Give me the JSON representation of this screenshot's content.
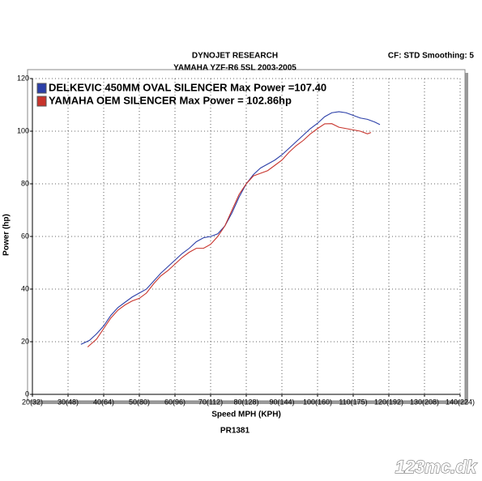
{
  "chart_data": {
    "type": "line",
    "title": "DYNOJET RESEARCH",
    "subtitle": "YAMAHA YZF-R6 5SL 2003-2005",
    "settings_note": "CF: STD  Smoothing: 5",
    "x_label": "Speed MPH (KPH)",
    "y_label": "Power (hp)",
    "run_id": "PR1381",
    "watermark": "123mc.dk",
    "xlim": [
      20,
      140
    ],
    "ylim": [
      0,
      120
    ],
    "xticks": [
      {
        "value": 20,
        "label": "20(32)"
      },
      {
        "value": 30,
        "label": "30(48)"
      },
      {
        "value": 40,
        "label": "40(64)"
      },
      {
        "value": 50,
        "label": "50(80)"
      },
      {
        "value": 60,
        "label": "60(96)"
      },
      {
        "value": 70,
        "label": "70(112)"
      },
      {
        "value": 80,
        "label": "80(128)"
      },
      {
        "value": 90,
        "label": "90(144)"
      },
      {
        "value": 100,
        "label": "100(160)"
      },
      {
        "value": 110,
        "label": "110(175)"
      },
      {
        "value": 120,
        "label": "120(192)"
      },
      {
        "value": 130,
        "label": "130(208)"
      },
      {
        "value": 140,
        "label": "140(224)"
      }
    ],
    "yticks": [
      0,
      20,
      40,
      60,
      80,
      100,
      120
    ],
    "grid": true,
    "legend": "upper left",
    "series": [
      {
        "name": "DELKEVIC 450MM OVAL SILENCER Max Power =107.40",
        "color": "#2b3fa8",
        "x": [
          33.6,
          36,
          38,
          40,
          42,
          44,
          46,
          48,
          50,
          52,
          54,
          56,
          58,
          60,
          62,
          64,
          66,
          68,
          70,
          72,
          74,
          76,
          78,
          80,
          82,
          84,
          86,
          88,
          90,
          92,
          94,
          96,
          98,
          100,
          102,
          104,
          106,
          108,
          110,
          112,
          114,
          116,
          117.5
        ],
        "values": [
          19,
          20.5,
          23,
          26,
          30,
          33,
          35,
          37,
          38.5,
          40,
          43,
          46,
          48.5,
          51,
          53.5,
          55.5,
          58,
          59.5,
          60,
          61,
          64,
          69,
          75,
          80,
          83.5,
          86,
          87.5,
          89,
          91,
          93.5,
          96,
          98.5,
          101,
          103,
          105.5,
          107,
          107.4,
          107,
          106,
          105,
          104.5,
          103.5,
          102.5
        ]
      },
      {
        "name": "YAMAHA OEM SILENCER Max Power = 102.86hp",
        "color": "#c8342c",
        "x": [
          35.5,
          38,
          40,
          42,
          44,
          46,
          48,
          50,
          52,
          54,
          56,
          58,
          60,
          62,
          64,
          66,
          68,
          70,
          72,
          74,
          76,
          78,
          80,
          82,
          84,
          86,
          88,
          90,
          92,
          94,
          96,
          98,
          100,
          102,
          104,
          106,
          108,
          110,
          112,
          114,
          115
        ],
        "values": [
          18,
          21,
          25,
          29,
          32,
          34,
          35.5,
          36.5,
          38.5,
          42,
          45,
          47,
          49.5,
          52,
          54,
          55.5,
          55.5,
          57,
          60,
          64,
          70,
          76,
          80,
          83,
          84,
          85,
          87,
          89,
          92,
          94.5,
          96.5,
          99,
          101,
          102.8,
          102.86,
          101.5,
          101,
          100.5,
          100,
          99,
          99.5
        ]
      }
    ]
  }
}
